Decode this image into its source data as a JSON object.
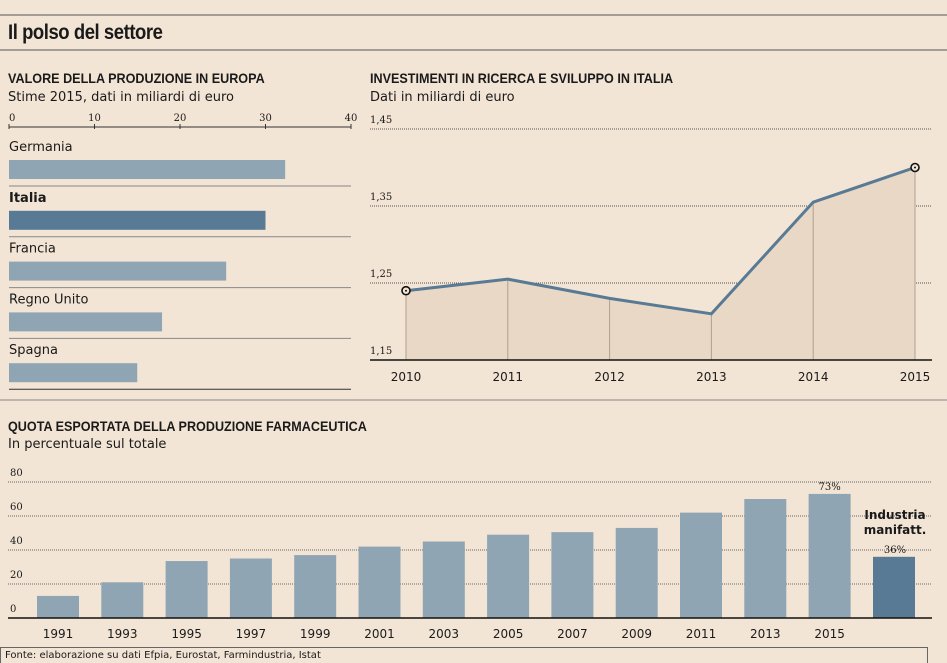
{
  "title": "Il polso del settore",
  "source": "Fonte: elaborazione su dati Efpia, Eurostat, Farmindustria, Istat",
  "colors": {
    "background": "#f3e5d5",
    "bar": "#8fa5b3",
    "highlight": "#587a94",
    "area": "#e8d8c5",
    "line": "#587a94"
  },
  "chart_data": [
    {
      "type": "bar",
      "orientation": "horizontal",
      "title": "VALORE DELLA PRODUZIONE IN EUROPA",
      "subtitle": "Stime 2015, dati in miliardi di euro",
      "categories": [
        "Germania",
        "Italia",
        "Francia",
        "Regno Unito",
        "Spagna"
      ],
      "values": [
        32.3,
        30,
        25.4,
        17.9,
        15
      ],
      "highlight": "Italia",
      "xlim": [
        0,
        40
      ],
      "xticks": [
        "0",
        "10",
        "20",
        "30",
        "40"
      ]
    },
    {
      "type": "area",
      "title": "INVESTIMENTI IN RICERCA E SVILUPPO IN ITALIA",
      "subtitle": "Dati in miliardi di euro",
      "x": [
        "2010",
        "2011",
        "2012",
        "2013",
        "2014",
        "2015"
      ],
      "values": [
        1.24,
        1.255,
        1.23,
        1.21,
        1.355,
        1.4
      ],
      "ylim": [
        1.15,
        1.45
      ],
      "yticks": [
        "1,15",
        "1,25",
        "1,35",
        "1,45"
      ],
      "grid": true
    },
    {
      "type": "bar",
      "title": "QUOTA ESPORTATA DELLA PRODUZIONE FARMACEUTICA",
      "subtitle": "In percentuale sul totale",
      "categories": [
        "1991",
        "1993",
        "1995",
        "1997",
        "1999",
        "2001",
        "2003",
        "2005",
        "2007",
        "2009",
        "2011",
        "2013",
        "2015"
      ],
      "values": [
        13,
        21,
        33.5,
        35,
        37,
        42,
        45,
        49,
        50.5,
        53,
        62,
        70,
        73
      ],
      "last_label": "73%",
      "comparison": {
        "label_line1": "Industria",
        "label_line2": "manifatt.",
        "value": 36,
        "value_label": "36%"
      },
      "ylim": [
        0,
        80
      ],
      "yticks": [
        "0",
        "20",
        "40",
        "60",
        "80"
      ],
      "grid": true
    }
  ]
}
